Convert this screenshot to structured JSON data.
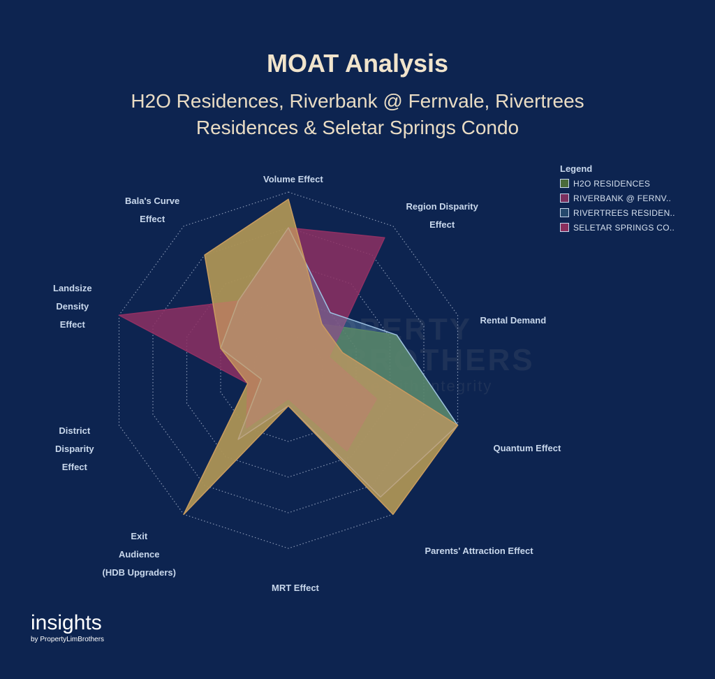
{
  "header": {
    "title": "MOAT Analysis",
    "subtitle_line1": "H2O Residences, Riverbank @ Fernvale, Rivertrees",
    "subtitle_line2": "Residences & Seletar Springs Condo"
  },
  "legend": {
    "title": "Legend",
    "items": [
      {
        "label": "H2O RESIDENCES",
        "color": "#4a6a3a"
      },
      {
        "label": "RIVERBANK @ FERNV..",
        "color": "#7a2f5e"
      },
      {
        "label": "RIVERTREES RESIDEN..",
        "color": "#25496d"
      },
      {
        "label": "SELETAR SPRINGS CO..",
        "color": "#8a2e5c"
      }
    ]
  },
  "axes": [
    {
      "lines": [
        "Volume Effect"
      ]
    },
    {
      "lines": [
        "Region Disparity",
        "Effect"
      ]
    },
    {
      "lines": [
        "Rental Demand"
      ]
    },
    {
      "lines": [
        "Quantum Effect"
      ]
    },
    {
      "lines": [
        "Parents' Attraction Effect"
      ]
    },
    {
      "lines": [
        "MRT Effect"
      ]
    },
    {
      "lines": [
        "Exit",
        "Audience",
        "(HDB Upgraders)"
      ]
    },
    {
      "lines": [
        "District",
        "Disparity",
        "Effect"
      ]
    },
    {
      "lines": [
        "Landsize",
        "Density",
        "Effect"
      ]
    },
    {
      "lines": [
        "Bala's Curve",
        "Effect"
      ]
    }
  ],
  "chart_data": {
    "type": "radar",
    "categories": [
      "Volume Effect",
      "Region Disparity Effect",
      "Rental Demand",
      "Quantum Effect",
      "Parents' Attraction Effect",
      "MRT Effect",
      "Exit Audience (HDB Upgraders)",
      "District Disparity Effect",
      "Landsize Density Effect",
      "Bala's Curve Effect"
    ],
    "rings": 5,
    "ylim": [
      0,
      5
    ],
    "grid": true,
    "legend_position": "top-right",
    "series": [
      {
        "name": "H2O RESIDENCES",
        "color": "#4d7a36",
        "values": [
          4.8,
          1.6,
          3.2,
          5,
          5,
          1,
          5,
          1.2,
          2,
          4
        ]
      },
      {
        "name": "RIVERBANK @ FERNV..",
        "color": "#8e3063",
        "values": [
          4,
          4.6,
          1.2,
          2.6,
          2.8,
          0.8,
          2,
          1.2,
          5,
          2.4
        ]
      },
      {
        "name": "RIVERTREES RESIDEN..",
        "color": "#6d9bc3",
        "values": [
          4,
          2,
          3.2,
          5,
          4.4,
          1,
          2.4,
          0.8,
          2,
          2.4
        ]
      },
      {
        "name": "SELETAR SPRINGS CO..",
        "color": "#c99a60",
        "values": [
          4.8,
          1.6,
          1.6,
          5,
          5,
          1,
          5,
          1.2,
          2,
          4
        ]
      }
    ]
  },
  "watermark": {
    "line1": "PROPERTY",
    "line2": "LIMBROTHERS",
    "line3": "Real Estate with Integrity"
  },
  "brand": {
    "name": "insights",
    "by": "by PropertyLimBrothers"
  }
}
